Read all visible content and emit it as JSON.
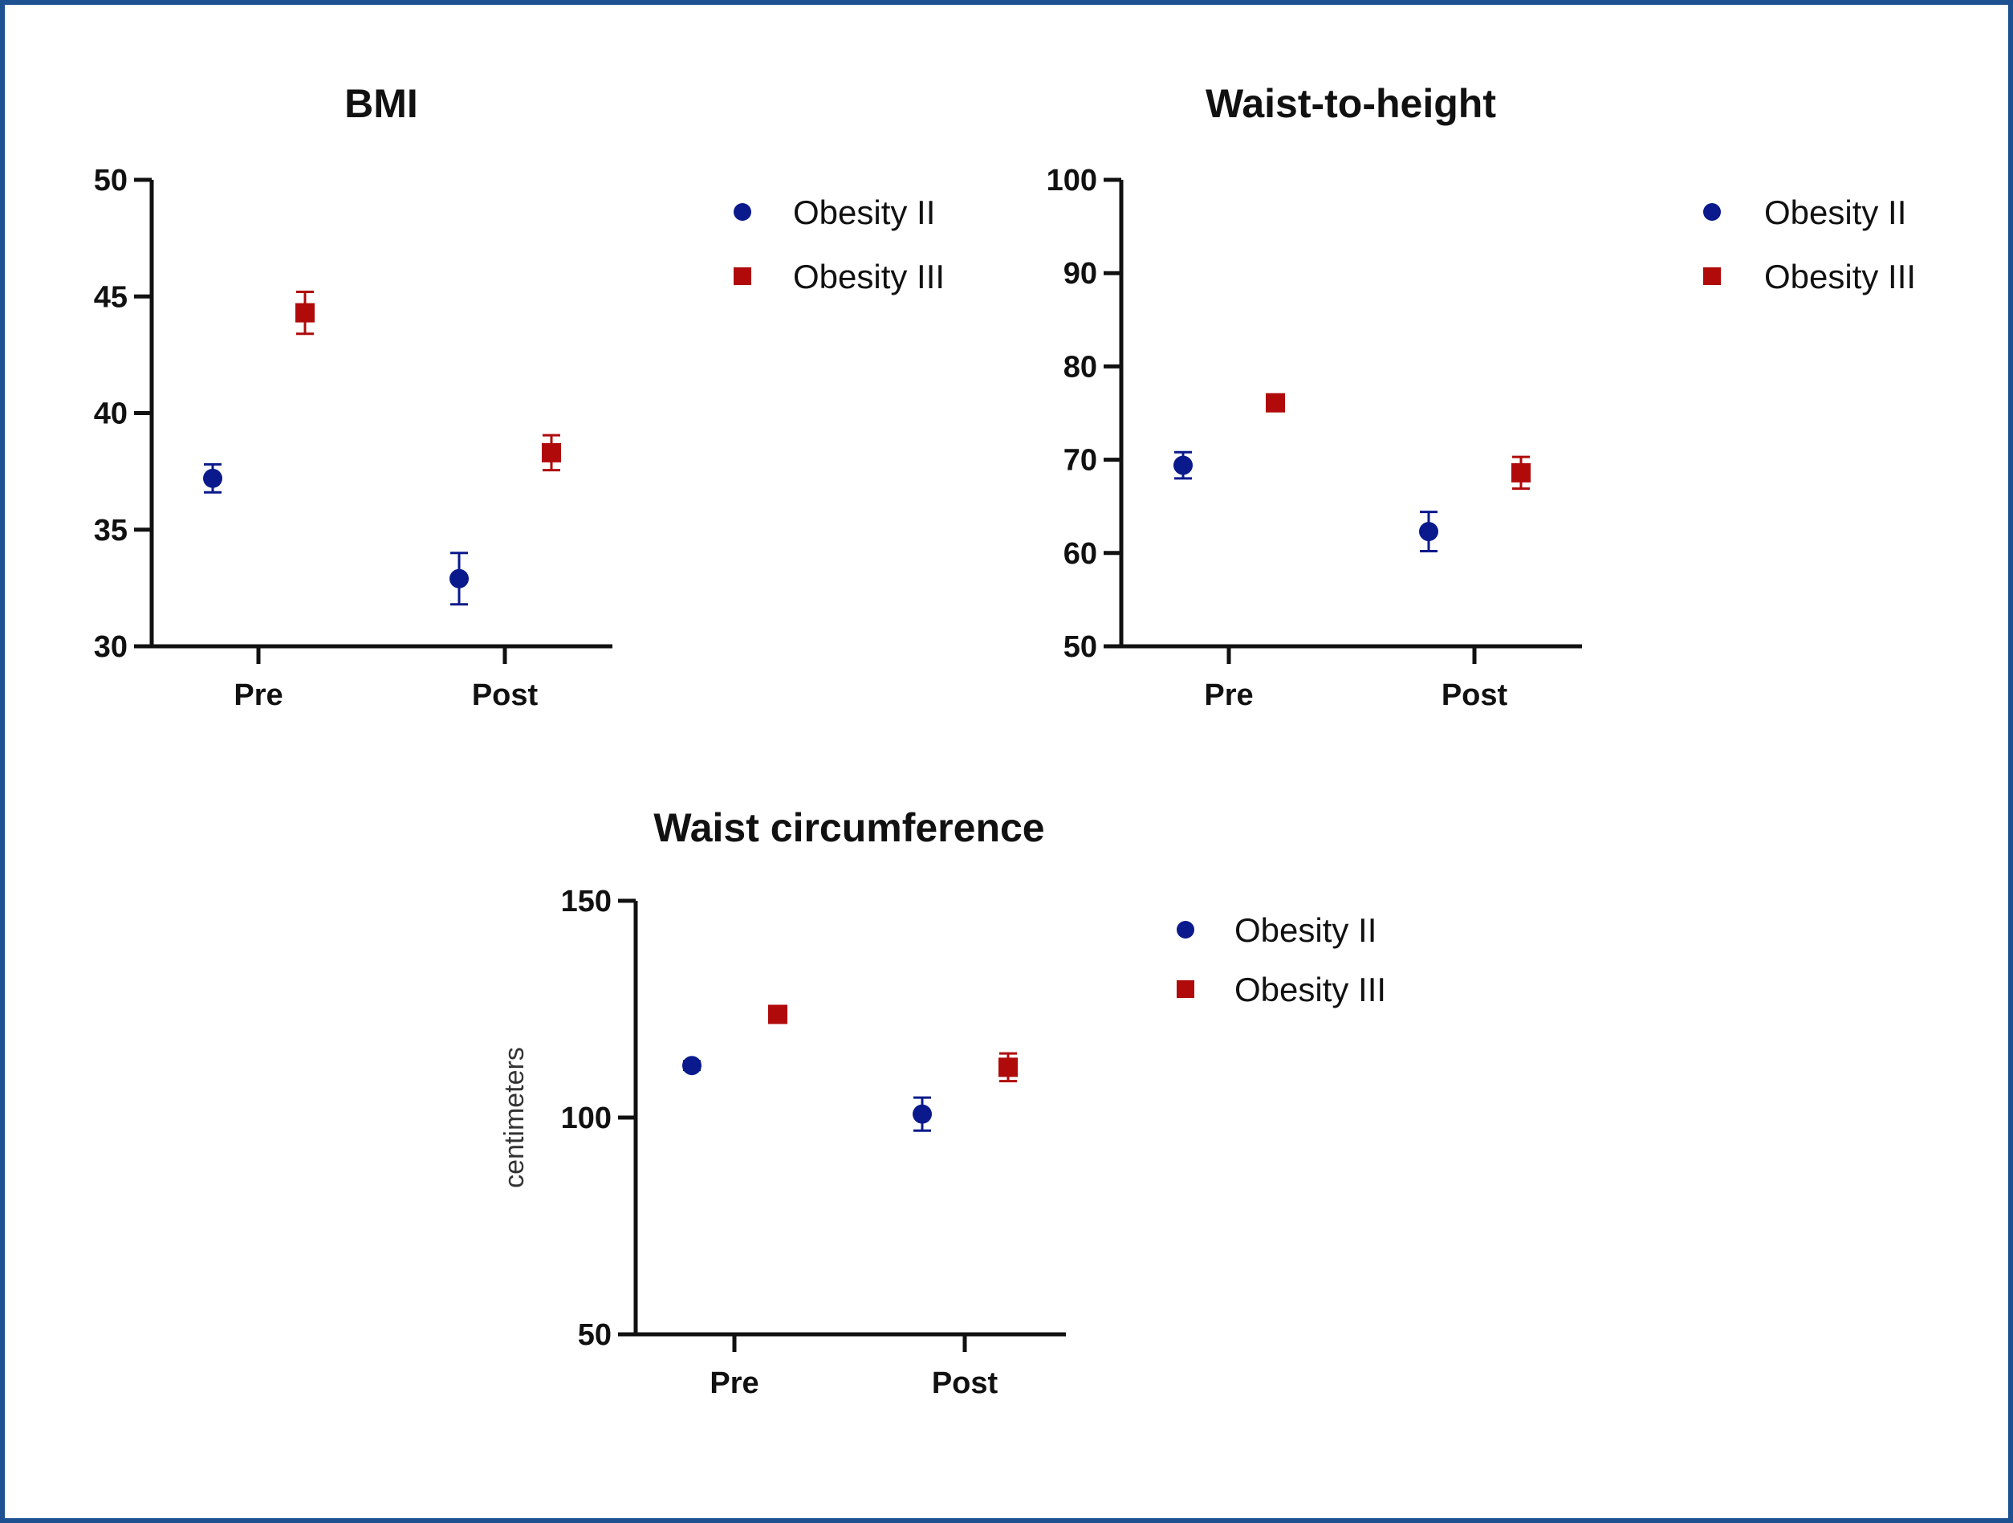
{
  "chart_data": [
    {
      "type": "scatter",
      "title": "BMI",
      "ylabel": "",
      "categories": [
        "Pre",
        "Post"
      ],
      "ylim": [
        30,
        50
      ],
      "yticks": [
        30,
        35,
        40,
        45,
        50
      ],
      "grid": false,
      "legend_position": "right",
      "series": [
        {
          "name": "Obesity II",
          "color": "#0a1a8c",
          "marker": "circle",
          "values": [
            37.2,
            32.9
          ],
          "errors": [
            0.6,
            1.1
          ]
        },
        {
          "name": "Obesity III",
          "color": "#b00a0a",
          "marker": "square",
          "values": [
            44.3,
            38.3
          ],
          "errors": [
            0.9,
            0.75
          ]
        }
      ]
    },
    {
      "type": "scatter",
      "title": "Waist-to-height",
      "ylabel": "",
      "categories": [
        "Pre",
        "Post"
      ],
      "ylim": [
        50,
        100
      ],
      "yticks": [
        50,
        60,
        70,
        80,
        90,
        100
      ],
      "grid": false,
      "legend_position": "right",
      "series": [
        {
          "name": "Obesity II",
          "color": "#0a1a8c",
          "marker": "circle",
          "values": [
            69.4,
            62.3
          ],
          "errors": [
            1.4,
            2.1
          ]
        },
        {
          "name": "Obesity III",
          "color": "#b00a0a",
          "marker": "square",
          "values": [
            76.1,
            68.6
          ],
          "errors": [
            0.8,
            1.7
          ]
        }
      ]
    },
    {
      "type": "scatter",
      "title": "Waist circumference",
      "ylabel": "centimeters",
      "categories": [
        "Pre",
        "Post"
      ],
      "ylim": [
        50,
        150
      ],
      "yticks": [
        50,
        100,
        150
      ],
      "grid": false,
      "legend_position": "right",
      "series": [
        {
          "name": "Obesity II",
          "color": "#0a1a8c",
          "marker": "circle",
          "values": [
            112,
            100.8
          ],
          "errors": [
            1,
            3.8
          ]
        },
        {
          "name": "Obesity III",
          "color": "#b00a0a",
          "marker": "square",
          "values": [
            123.8,
            111.6
          ],
          "errors": [
            1.5,
            3.2
          ]
        }
      ]
    }
  ]
}
